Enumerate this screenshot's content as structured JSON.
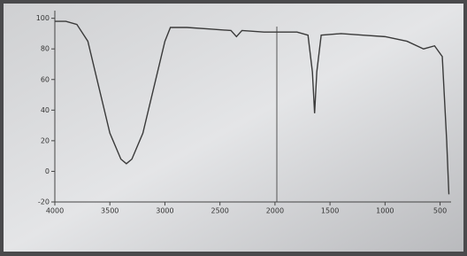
{
  "chart_data": {
    "type": "line",
    "x": [
      4000,
      3900,
      3800,
      3700,
      3600,
      3500,
      3400,
      3350,
      3300,
      3200,
      3100,
      3000,
      2950,
      2800,
      2600,
      2400,
      2350,
      2300,
      2100,
      2000,
      1800,
      1700,
      1660,
      1640,
      1620,
      1580,
      1400,
      1200,
      1000,
      800,
      650,
      550,
      480,
      440,
      420
    ],
    "values": [
      98,
      98,
      96,
      85,
      55,
      25,
      8,
      5,
      8,
      25,
      55,
      85,
      94,
      94,
      93,
      92,
      88,
      92,
      91,
      91,
      91,
      89,
      65,
      38,
      65,
      89,
      90,
      89,
      88,
      85,
      80,
      82,
      75,
      20,
      -15
    ],
    "color": "#3a3a3a",
    "xlim": [
      4000,
      400
    ],
    "xticks": [
      4000,
      3500,
      3000,
      2500,
      2000,
      1500,
      1000,
      500
    ],
    "ylim": [
      -20,
      105
    ],
    "yticks": [
      -20,
      0,
      20,
      40,
      60,
      80,
      100
    ]
  }
}
